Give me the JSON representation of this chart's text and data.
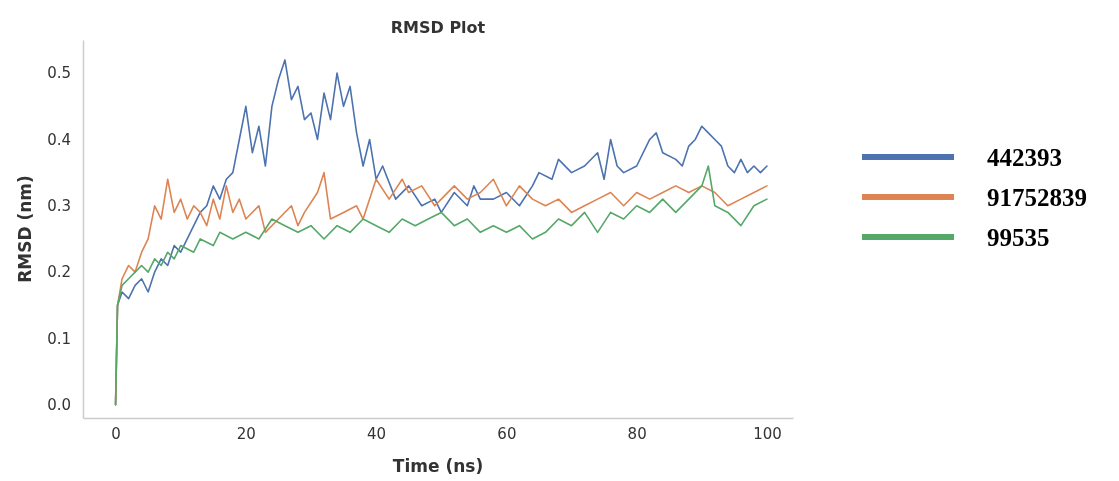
{
  "chart_data": {
    "type": "line",
    "title": "RMSD Plot",
    "xlabel": "Time (ns)",
    "ylabel": "RMSD (nm)",
    "xlim": [
      -5,
      104
    ],
    "ylim": [
      -0.02,
      0.55
    ],
    "xticks": [
      0,
      20,
      40,
      60,
      80,
      100
    ],
    "yticks": [
      {
        "value": 0,
        "label": "0.0"
      },
      0.1,
      0.2,
      0.3,
      0.4,
      0.5
    ],
    "grid": false,
    "legend": "right",
    "marker": "none",
    "line_style": "solid",
    "series": [
      {
        "name": "442393",
        "color": "#4c72b0",
        "x": [
          0,
          0.3,
          1,
          2,
          3,
          4,
          5,
          6,
          7,
          8,
          9,
          10,
          11,
          12,
          13,
          14,
          15,
          16,
          17,
          18,
          19,
          20,
          21,
          22,
          23,
          24,
          25,
          26,
          27,
          28,
          29,
          30,
          31,
          32,
          33,
          34,
          35,
          36,
          37,
          38,
          39,
          40,
          41,
          43,
          45,
          47,
          49,
          50,
          52,
          54,
          55,
          56,
          58,
          60,
          62,
          64,
          65,
          67,
          68,
          70,
          72,
          74,
          75,
          76,
          77,
          78,
          80,
          82,
          83,
          84,
          86,
          87,
          88,
          89,
          90,
          91,
          92,
          93,
          94,
          95,
          96,
          97,
          98,
          99,
          100
        ],
        "values": [
          0.0,
          0.15,
          0.17,
          0.16,
          0.18,
          0.19,
          0.17,
          0.2,
          0.22,
          0.21,
          0.24,
          0.23,
          0.25,
          0.27,
          0.29,
          0.3,
          0.33,
          0.31,
          0.34,
          0.35,
          0.4,
          0.45,
          0.38,
          0.42,
          0.36,
          0.45,
          0.49,
          0.52,
          0.46,
          0.48,
          0.43,
          0.44,
          0.4,
          0.47,
          0.43,
          0.5,
          0.45,
          0.48,
          0.41,
          0.36,
          0.4,
          0.34,
          0.36,
          0.31,
          0.33,
          0.3,
          0.31,
          0.29,
          0.32,
          0.3,
          0.33,
          0.31,
          0.31,
          0.32,
          0.3,
          0.33,
          0.35,
          0.34,
          0.37,
          0.35,
          0.36,
          0.38,
          0.34,
          0.4,
          0.36,
          0.35,
          0.36,
          0.4,
          0.41,
          0.38,
          0.37,
          0.36,
          0.39,
          0.4,
          0.42,
          0.41,
          0.4,
          0.39,
          0.36,
          0.35,
          0.37,
          0.35,
          0.36,
          0.35,
          0.36
        ]
      },
      {
        "name": "91752839",
        "color": "#dd8452",
        "x": [
          0,
          0.3,
          1,
          2,
          3,
          4,
          5,
          6,
          7,
          8,
          9,
          10,
          11,
          12,
          13,
          14,
          15,
          16,
          17,
          18,
          19,
          20,
          22,
          23,
          25,
          27,
          28,
          29,
          31,
          32,
          33,
          35,
          37,
          38,
          40,
          42,
          44,
          45,
          47,
          49,
          50,
          52,
          54,
          56,
          58,
          60,
          62,
          64,
          66,
          68,
          70,
          72,
          74,
          76,
          78,
          80,
          82,
          84,
          86,
          88,
          90,
          92,
          94,
          96,
          98,
          100
        ],
        "values": [
          0.0,
          0.15,
          0.19,
          0.21,
          0.2,
          0.23,
          0.25,
          0.3,
          0.28,
          0.34,
          0.29,
          0.31,
          0.28,
          0.3,
          0.29,
          0.27,
          0.31,
          0.28,
          0.33,
          0.29,
          0.31,
          0.28,
          0.3,
          0.26,
          0.28,
          0.3,
          0.27,
          0.29,
          0.32,
          0.35,
          0.28,
          0.29,
          0.3,
          0.28,
          0.34,
          0.31,
          0.34,
          0.32,
          0.33,
          0.3,
          0.31,
          0.33,
          0.31,
          0.32,
          0.34,
          0.3,
          0.33,
          0.31,
          0.3,
          0.31,
          0.29,
          0.3,
          0.31,
          0.32,
          0.3,
          0.32,
          0.31,
          0.32,
          0.33,
          0.32,
          0.33,
          0.32,
          0.3,
          0.31,
          0.32,
          0.33
        ]
      },
      {
        "name": "99535",
        "color": "#55a868",
        "x": [
          0,
          0.3,
          1,
          2,
          3,
          4,
          5,
          6,
          7,
          8,
          9,
          10,
          12,
          13,
          15,
          16,
          18,
          20,
          22,
          24,
          26,
          28,
          30,
          32,
          34,
          36,
          38,
          40,
          42,
          44,
          46,
          48,
          50,
          52,
          54,
          56,
          58,
          60,
          62,
          64,
          66,
          68,
          70,
          72,
          74,
          76,
          78,
          80,
          82,
          84,
          86,
          88,
          90,
          91,
          92,
          94,
          96,
          98,
          100
        ],
        "values": [
          0.0,
          0.15,
          0.18,
          0.19,
          0.2,
          0.21,
          0.2,
          0.22,
          0.21,
          0.23,
          0.22,
          0.24,
          0.23,
          0.25,
          0.24,
          0.26,
          0.25,
          0.26,
          0.25,
          0.28,
          0.27,
          0.26,
          0.27,
          0.25,
          0.27,
          0.26,
          0.28,
          0.27,
          0.26,
          0.28,
          0.27,
          0.28,
          0.29,
          0.27,
          0.28,
          0.26,
          0.27,
          0.26,
          0.27,
          0.25,
          0.26,
          0.28,
          0.27,
          0.29,
          0.26,
          0.29,
          0.28,
          0.3,
          0.29,
          0.31,
          0.29,
          0.31,
          0.33,
          0.36,
          0.3,
          0.29,
          0.27,
          0.3,
          0.31
        ]
      }
    ]
  }
}
